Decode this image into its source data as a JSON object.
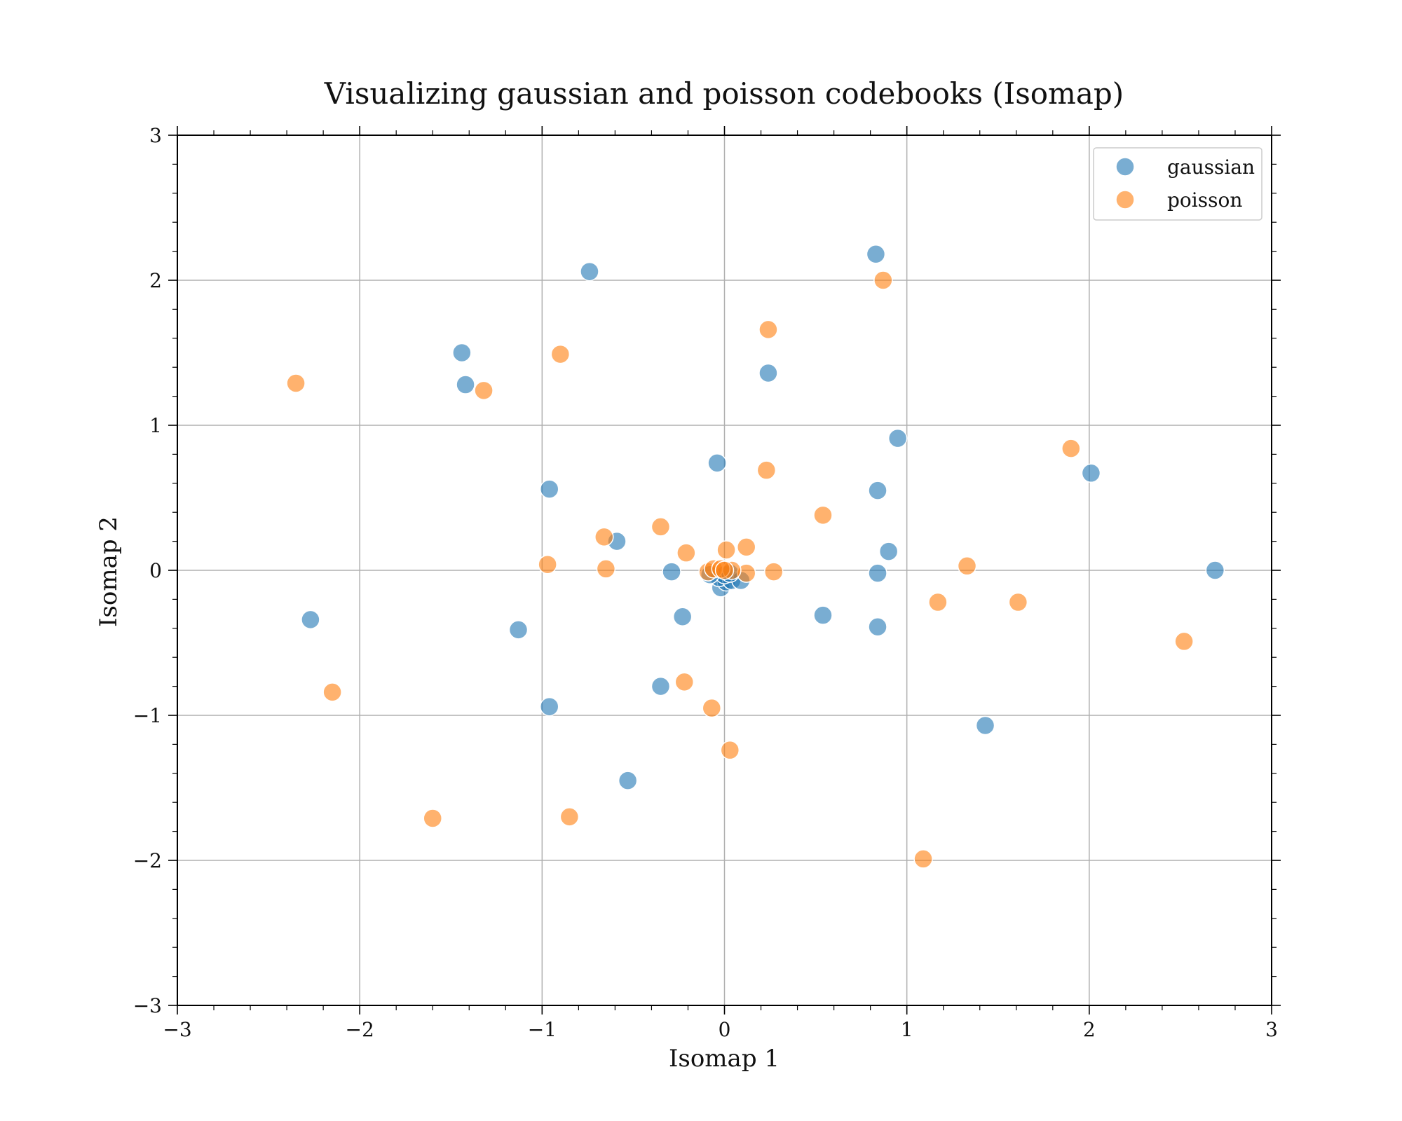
{
  "colors": {
    "gaussian": "#1f77b4",
    "poisson": "#ff7f0e",
    "grid": "#b0b0b0"
  },
  "chart_data": {
    "type": "scatter",
    "title": "Visualizing gaussian and poisson codebooks (Isomap)",
    "xlabel": "Isomap 1",
    "ylabel": "Isomap 2",
    "xlim": [
      -3,
      3
    ],
    "ylim": [
      -3,
      3
    ],
    "xticks": [
      -3,
      -2,
      -1,
      0,
      1,
      2,
      3
    ],
    "yticks": [
      -3,
      -2,
      -1,
      0,
      1,
      2,
      3
    ],
    "xtick_labels": [
      "−3",
      "−2",
      "−1",
      "0",
      "1",
      "2",
      "3"
    ],
    "ytick_labels": [
      "−3",
      "−2",
      "−1",
      "0",
      "1",
      "2",
      "3"
    ],
    "grid": true,
    "legend_position": "top-right",
    "series": [
      {
        "name": "gaussian",
        "color": "#1f77b4",
        "points": [
          [
            -0.74,
            2.06
          ],
          [
            0.83,
            2.18
          ],
          [
            -1.44,
            1.5
          ],
          [
            -1.42,
            1.28
          ],
          [
            0.24,
            1.36
          ],
          [
            -0.04,
            0.74
          ],
          [
            0.95,
            0.91
          ],
          [
            2.01,
            0.67
          ],
          [
            -0.96,
            0.56
          ],
          [
            0.84,
            0.55
          ],
          [
            -0.59,
            0.2
          ],
          [
            0.9,
            0.13
          ],
          [
            2.69,
            0.0
          ],
          [
            -0.29,
            -0.01
          ],
          [
            0.84,
            -0.02
          ],
          [
            -2.27,
            -0.34
          ],
          [
            -0.23,
            -0.32
          ],
          [
            0.54,
            -0.31
          ],
          [
            -1.13,
            -0.41
          ],
          [
            0.84,
            -0.39
          ],
          [
            -0.35,
            -0.8
          ],
          [
            -0.96,
            -0.94
          ],
          [
            1.43,
            -1.07
          ],
          [
            -0.53,
            -1.45
          ],
          [
            -0.02,
            -0.12
          ],
          [
            0.01,
            -0.08
          ],
          [
            -0.03,
            -0.05
          ],
          [
            0.04,
            -0.07
          ],
          [
            0.09,
            -0.07
          ],
          [
            0.0,
            -0.03
          ],
          [
            -0.08,
            -0.03
          ],
          [
            0.03,
            -0.02
          ]
        ]
      },
      {
        "name": "poisson",
        "color": "#ff7f0e",
        "points": [
          [
            0.87,
            2.0
          ],
          [
            0.24,
            1.66
          ],
          [
            -0.9,
            1.49
          ],
          [
            -2.35,
            1.29
          ],
          [
            -1.32,
            1.24
          ],
          [
            1.9,
            0.84
          ],
          [
            0.23,
            0.69
          ],
          [
            0.54,
            0.38
          ],
          [
            -0.35,
            0.3
          ],
          [
            -0.66,
            0.23
          ],
          [
            0.12,
            0.16
          ],
          [
            -0.21,
            0.12
          ],
          [
            0.01,
            0.14
          ],
          [
            -0.97,
            0.04
          ],
          [
            -0.65,
            0.01
          ],
          [
            1.33,
            0.03
          ],
          [
            0.27,
            -0.01
          ],
          [
            0.12,
            -0.02
          ],
          [
            -0.09,
            -0.01
          ],
          [
            -0.06,
            0.01
          ],
          [
            1.17,
            -0.22
          ],
          [
            1.61,
            -0.22
          ],
          [
            2.52,
            -0.49
          ],
          [
            -2.15,
            -0.84
          ],
          [
            -0.22,
            -0.77
          ],
          [
            -0.07,
            -0.95
          ],
          [
            0.03,
            -1.24
          ],
          [
            -1.6,
            -1.71
          ],
          [
            -0.85,
            -1.7
          ],
          [
            1.09,
            -1.99
          ],
          [
            0.04,
            0.0
          ],
          [
            -0.02,
            0.01
          ],
          [
            0.0,
            0.0
          ]
        ]
      }
    ]
  }
}
